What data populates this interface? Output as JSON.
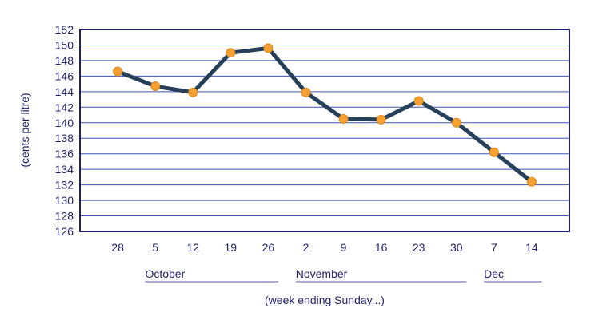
{
  "chart_data": {
    "type": "line",
    "ylabel": "(cents per litre)",
    "xlabel": "(week ending Sunday...)",
    "ylim": [
      126,
      152
    ],
    "y_ticks": [
      126,
      128,
      130,
      132,
      134,
      136,
      138,
      140,
      142,
      144,
      146,
      148,
      150,
      152
    ],
    "grid": true,
    "categories": [
      "28",
      "5",
      "12",
      "19",
      "26",
      "2",
      "9",
      "16",
      "23",
      "30",
      "7",
      "14"
    ],
    "values": [
      146.6,
      144.7,
      143.9,
      149.0,
      149.6,
      143.9,
      140.5,
      140.4,
      142.8,
      140.0,
      136.2,
      132.4
    ],
    "month_groups": [
      {
        "label": "October",
        "from": 1,
        "to": 4
      },
      {
        "label": "November",
        "from": 5,
        "to": 9
      },
      {
        "label": "Dec",
        "from": 10,
        "to": 11
      }
    ],
    "colors": {
      "line": "#27405a",
      "marker_fill": "#f5a030",
      "marker_stroke": "#d98a1e",
      "axis": "#1f1f6b",
      "grid": "#3a56b8"
    }
  }
}
